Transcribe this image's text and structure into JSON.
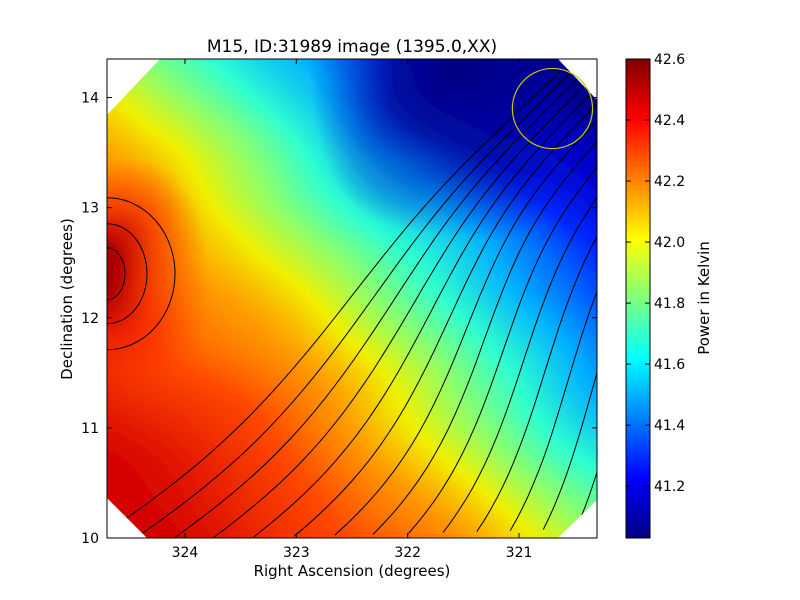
{
  "chart_data": {
    "type": "heatmap",
    "title": "M15, ID:31989 image (1395.0,XX)",
    "xlabel": "Right Ascension (degrees)",
    "ylabel": "Declination (degrees)",
    "xlim": [
      324.7,
      320.3
    ],
    "ylim": [
      10.0,
      14.35
    ],
    "x_ticks": [
      324,
      323,
      322,
      321
    ],
    "x_tick_labels": [
      "324",
      "323",
      "322",
      "321"
    ],
    "y_ticks": [
      10,
      11,
      12,
      13,
      14
    ],
    "y_tick_labels": [
      "10",
      "11",
      "12",
      "13",
      "14"
    ],
    "colorbar": {
      "label": "Power in Kelvin",
      "range": [
        41.03,
        42.6
      ],
      "ticks": [
        41.2,
        41.4,
        41.6,
        41.8,
        42.0,
        42.2,
        42.4,
        42.6
      ],
      "tick_labels": [
        "41.2",
        "41.4",
        "41.6",
        "41.8",
        "42.0",
        "42.2",
        "42.4",
        "42.6"
      ],
      "colormap": "jet"
    },
    "peak": {
      "ra": 324.6,
      "dec": 12.4,
      "value": 42.6
    },
    "minimum": {
      "ra": 321.0,
      "dec": 14.1,
      "value": 41.03
    },
    "contours": true,
    "contour_count": 14,
    "marker_circle": {
      "ra": 320.7,
      "dec": 13.9,
      "radius_deg": 0.36,
      "color": "#c8c800"
    }
  }
}
